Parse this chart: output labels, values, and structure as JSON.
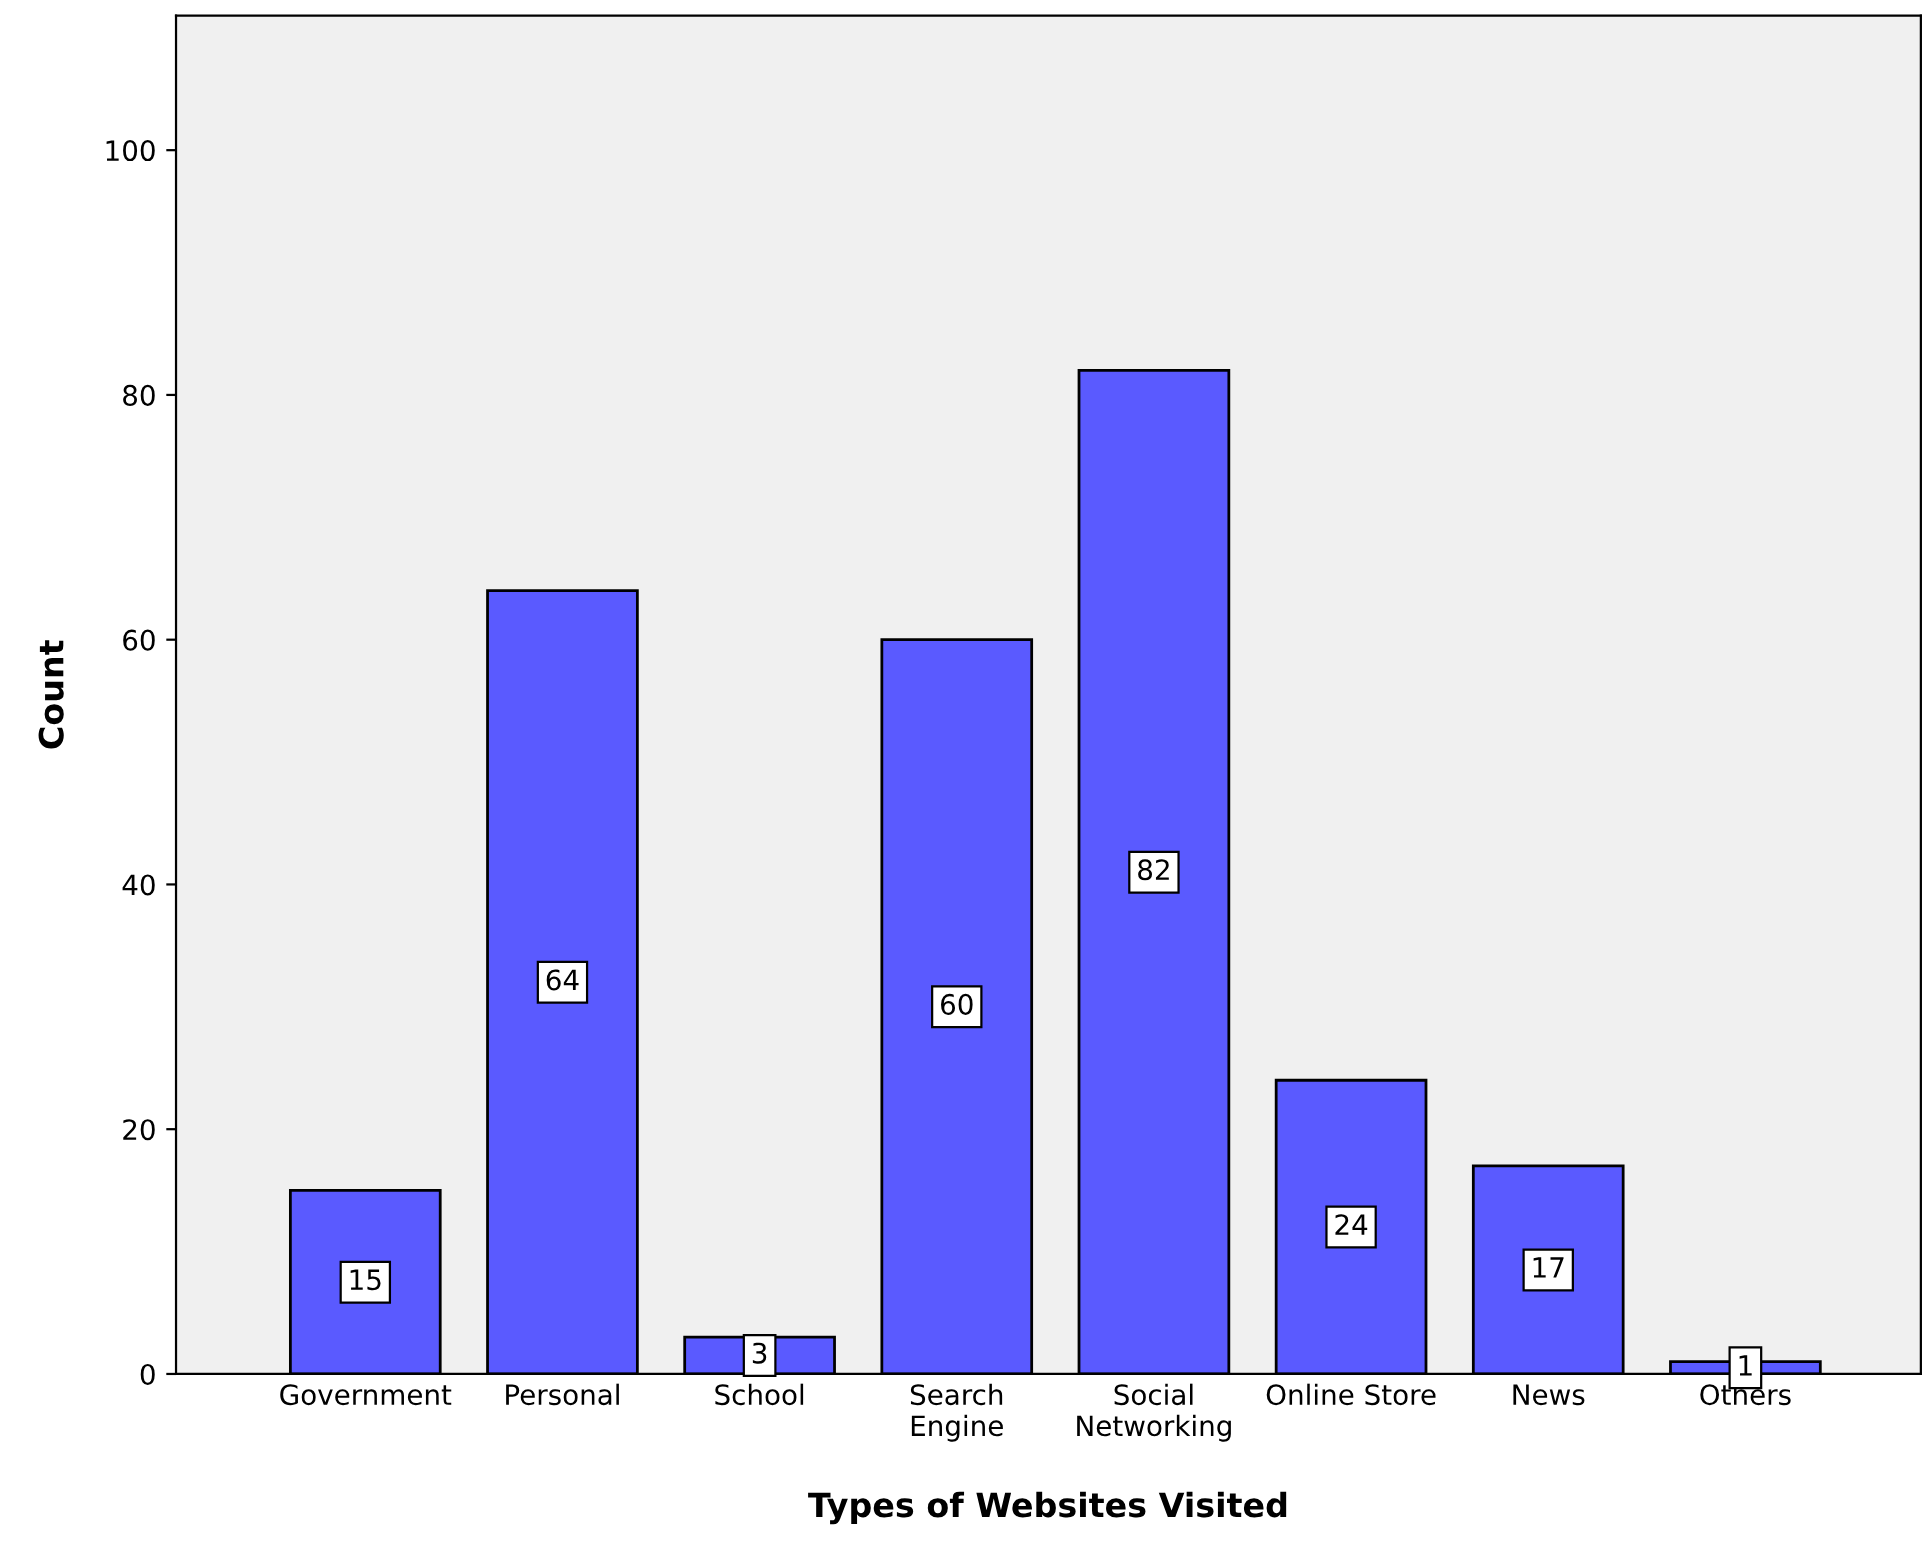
{
  "chart_data": {
    "type": "bar",
    "xlabel": "Types of Websites Visited",
    "ylabel": "Count",
    "categories": [
      "Government",
      "Personal",
      "School",
      "Search\nEngine",
      "Social\nNetworking",
      "Online Store",
      "News",
      "Others"
    ],
    "values": [
      15,
      64,
      3,
      60,
      82,
      24,
      17,
      1
    ],
    "color": "#5a5aff",
    "ylim": [
      0,
      111
    ],
    "yticks": [
      0,
      20,
      40,
      60,
      80,
      100
    ],
    "grid": false,
    "data_labels": true
  }
}
